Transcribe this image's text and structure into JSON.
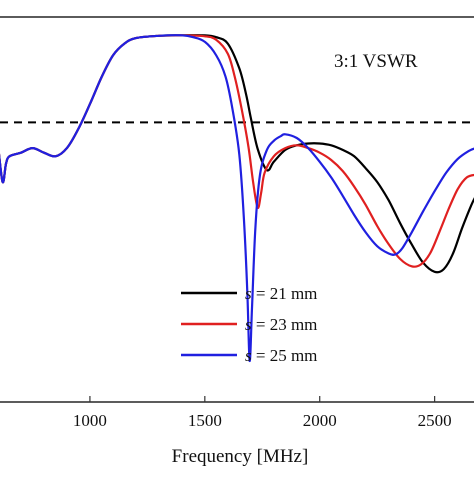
{
  "chart_data": {
    "type": "line",
    "xlabel": "Frequency [MHz]",
    "ylabel": "",
    "xlim": [
      600,
      2680
    ],
    "ylim": [
      -40,
      2
    ],
    "x_ticks": [
      "1000",
      "1500",
      "2000",
      "2500"
    ],
    "x_tick_values": [
      1000,
      1500,
      2000,
      2500
    ],
    "annotation": "3:1 VSWR",
    "reference_line": {
      "y": -9.5,
      "style": "dashed",
      "color": "#000000"
    },
    "legend": {
      "placement": "bottom-center",
      "prefix": "s",
      "entries": [
        " = 21 mm",
        " = 23 mm",
        " = 25 mm"
      ]
    },
    "series": [
      {
        "name": "s = 21 mm",
        "color": "#000000",
        "points": [
          [
            600,
            -12
          ],
          [
            620,
            -16
          ],
          [
            635,
            -14
          ],
          [
            650,
            -13.2
          ],
          [
            700,
            -12.8
          ],
          [
            750,
            -12.3
          ],
          [
            800,
            -12.8
          ],
          [
            850,
            -13.2
          ],
          [
            900,
            -12.3
          ],
          [
            950,
            -10.2
          ],
          [
            1000,
            -7.5
          ],
          [
            1050,
            -4.6
          ],
          [
            1100,
            -2.2
          ],
          [
            1150,
            -0.9
          ],
          [
            1200,
            -0.3
          ],
          [
            1300,
            -0.05
          ],
          [
            1400,
            0
          ],
          [
            1500,
            0
          ],
          [
            1550,
            -0.2
          ],
          [
            1600,
            -0.9
          ],
          [
            1650,
            -3.6
          ],
          [
            1680,
            -6.5
          ],
          [
            1700,
            -9
          ],
          [
            1730,
            -12.4
          ],
          [
            1770,
            -14.7
          ],
          [
            1800,
            -13.8
          ],
          [
            1850,
            -12.5
          ],
          [
            1900,
            -12
          ],
          [
            1950,
            -11.8
          ],
          [
            2000,
            -11.8
          ],
          [
            2050,
            -12
          ],
          [
            2100,
            -12.5
          ],
          [
            2150,
            -13.2
          ],
          [
            2200,
            -14.5
          ],
          [
            2250,
            -16
          ],
          [
            2300,
            -18
          ],
          [
            2350,
            -20.5
          ],
          [
            2400,
            -22.8
          ],
          [
            2450,
            -24.8
          ],
          [
            2500,
            -25.8
          ],
          [
            2540,
            -25.5
          ],
          [
            2580,
            -23.8
          ],
          [
            2620,
            -21
          ],
          [
            2660,
            -18.5
          ],
          [
            2680,
            -17.5
          ]
        ]
      },
      {
        "name": "s = 23 mm",
        "color": "#e02020",
        "points": [
          [
            600,
            -12
          ],
          [
            620,
            -16
          ],
          [
            635,
            -14
          ],
          [
            650,
            -13.2
          ],
          [
            700,
            -12.8
          ],
          [
            750,
            -12.3
          ],
          [
            800,
            -12.8
          ],
          [
            850,
            -13.2
          ],
          [
            900,
            -12.3
          ],
          [
            950,
            -10.2
          ],
          [
            1000,
            -7.5
          ],
          [
            1050,
            -4.6
          ],
          [
            1100,
            -2.2
          ],
          [
            1150,
            -0.9
          ],
          [
            1200,
            -0.3
          ],
          [
            1300,
            -0.05
          ],
          [
            1400,
            0
          ],
          [
            1500,
            -0.1
          ],
          [
            1550,
            -0.5
          ],
          [
            1600,
            -2
          ],
          [
            1630,
            -4.5
          ],
          [
            1660,
            -8
          ],
          [
            1690,
            -12.2
          ],
          [
            1710,
            -16
          ],
          [
            1730,
            -18.8
          ],
          [
            1745,
            -17.2
          ],
          [
            1760,
            -15
          ],
          [
            1800,
            -13.2
          ],
          [
            1850,
            -12.3
          ],
          [
            1900,
            -12
          ],
          [
            1950,
            -12.3
          ],
          [
            2000,
            -12.8
          ],
          [
            2050,
            -13.6
          ],
          [
            2100,
            -14.8
          ],
          [
            2150,
            -16.5
          ],
          [
            2200,
            -18.5
          ],
          [
            2250,
            -20.8
          ],
          [
            2300,
            -22.8
          ],
          [
            2350,
            -24.4
          ],
          [
            2400,
            -25.2
          ],
          [
            2440,
            -25
          ],
          [
            2480,
            -23.8
          ],
          [
            2520,
            -21.5
          ],
          [
            2560,
            -19
          ],
          [
            2600,
            -16.8
          ],
          [
            2640,
            -15.5
          ],
          [
            2680,
            -15.2
          ]
        ]
      },
      {
        "name": "s = 25 mm",
        "color": "#2020e0",
        "points": [
          [
            600,
            -12
          ],
          [
            620,
            -16
          ],
          [
            635,
            -14
          ],
          [
            650,
            -13.2
          ],
          [
            700,
            -12.8
          ],
          [
            750,
            -12.3
          ],
          [
            800,
            -12.8
          ],
          [
            850,
            -13.2
          ],
          [
            900,
            -12.3
          ],
          [
            950,
            -10.2
          ],
          [
            1000,
            -7.5
          ],
          [
            1050,
            -4.6
          ],
          [
            1100,
            -2.2
          ],
          [
            1150,
            -0.9
          ],
          [
            1200,
            -0.3
          ],
          [
            1300,
            -0.05
          ],
          [
            1400,
            0
          ],
          [
            1450,
            -0.2
          ],
          [
            1500,
            -0.7
          ],
          [
            1550,
            -2.2
          ],
          [
            1590,
            -4.5
          ],
          [
            1620,
            -8
          ],
          [
            1650,
            -13
          ],
          [
            1670,
            -20
          ],
          [
            1685,
            -28
          ],
          [
            1695,
            -35.5
          ],
          [
            1705,
            -30
          ],
          [
            1720,
            -21
          ],
          [
            1740,
            -15.2
          ],
          [
            1770,
            -12.5
          ],
          [
            1800,
            -11.5
          ],
          [
            1830,
            -11
          ],
          [
            1850,
            -10.8
          ],
          [
            1900,
            -11.2
          ],
          [
            1950,
            -12.3
          ],
          [
            2000,
            -13.8
          ],
          [
            2050,
            -15.5
          ],
          [
            2100,
            -17.5
          ],
          [
            2150,
            -19.6
          ],
          [
            2200,
            -21.5
          ],
          [
            2250,
            -23
          ],
          [
            2300,
            -23.8
          ],
          [
            2330,
            -23.9
          ],
          [
            2360,
            -23.2
          ],
          [
            2400,
            -21.5
          ],
          [
            2450,
            -19.2
          ],
          [
            2500,
            -17
          ],
          [
            2550,
            -15
          ],
          [
            2600,
            -13.5
          ],
          [
            2650,
            -12.6
          ],
          [
            2680,
            -12.3
          ]
        ]
      }
    ]
  }
}
